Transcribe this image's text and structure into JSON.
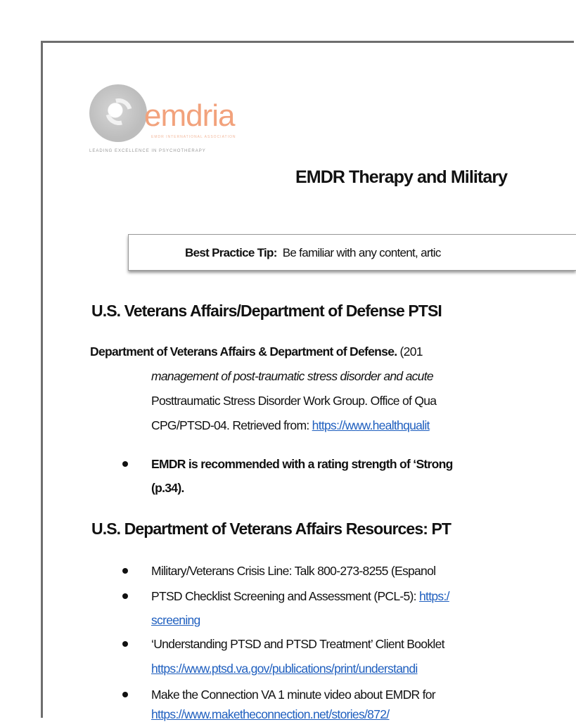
{
  "logo": {
    "word": "emdria",
    "subtitle": "EMDR INTERNATIONAL ASSOCIATION",
    "tagline": "LEADING EXCELLENCE IN PSYCHOTHERAPY"
  },
  "title": "EMDR Therapy and Military",
  "tip": {
    "label": "Best Practice Tip:",
    "text": "Be familiar with any content, artic"
  },
  "section1": {
    "heading": "U.S. Veterans Affairs/Department of Defense PTSI",
    "ref_author": "Department of Veterans Affairs & Department of Defense.",
    "ref_year": " (201",
    "ref_line2": "management of post-traumatic stress disorder and acute",
    "ref_line3": "Posttraumatic Stress Disorder Work Group. Office of Qua",
    "ref_line4_prefix": "CPG/PTSD-04. Retrieved from: ",
    "ref_link": "https://www.healthqualit",
    "bullet_line1": "EMDR is recommended with a rating strength of ‘Strong ",
    "bullet_line2": "(p.34)."
  },
  "section2": {
    "heading": "U.S. Department of Veterans Affairs Resources: PT",
    "items": [
      {
        "text": "Military/Veterans Crisis Line: Talk 800-273-8255 (Espanol"
      },
      {
        "text": "PTSD Checklist Screening and Assessment (PCL-5): ",
        "link": "https:/",
        "link2": "screening"
      },
      {
        "text": "‘Understanding PTSD and PTSD Treatment’ Client Booklet",
        "link": "https://www.ptsd.va.gov/publications/print/understandi"
      },
      {
        "text": "Make the Connection VA 1 minute video about EMDR for",
        "link": "https://www.maketheconnection.net/stories/872/"
      }
    ]
  }
}
